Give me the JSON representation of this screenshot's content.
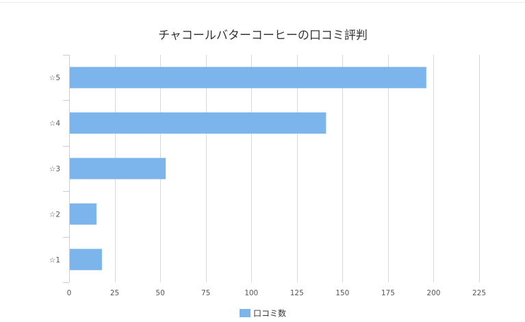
{
  "chart_data": {
    "type": "bar",
    "orientation": "horizontal",
    "title": "チャコールバターコーヒーの口コミ評判",
    "categories": [
      "☆5",
      "☆4",
      "☆3",
      "☆2",
      "☆1"
    ],
    "series": [
      {
        "name": "口コミ数",
        "values": [
          196,
          141,
          53,
          15,
          18
        ],
        "color": "#7cb5ec"
      }
    ],
    "xlim": [
      0,
      225
    ],
    "xticks": [
      0,
      25,
      50,
      75,
      100,
      125,
      150,
      175,
      200,
      225
    ],
    "xlabel": "",
    "ylabel": "",
    "grid": true,
    "legend": "bottom-center"
  },
  "colors": {
    "bar": "#7cb5ec",
    "grid": "#d8d8d8",
    "axis": "#c0d0e0"
  }
}
